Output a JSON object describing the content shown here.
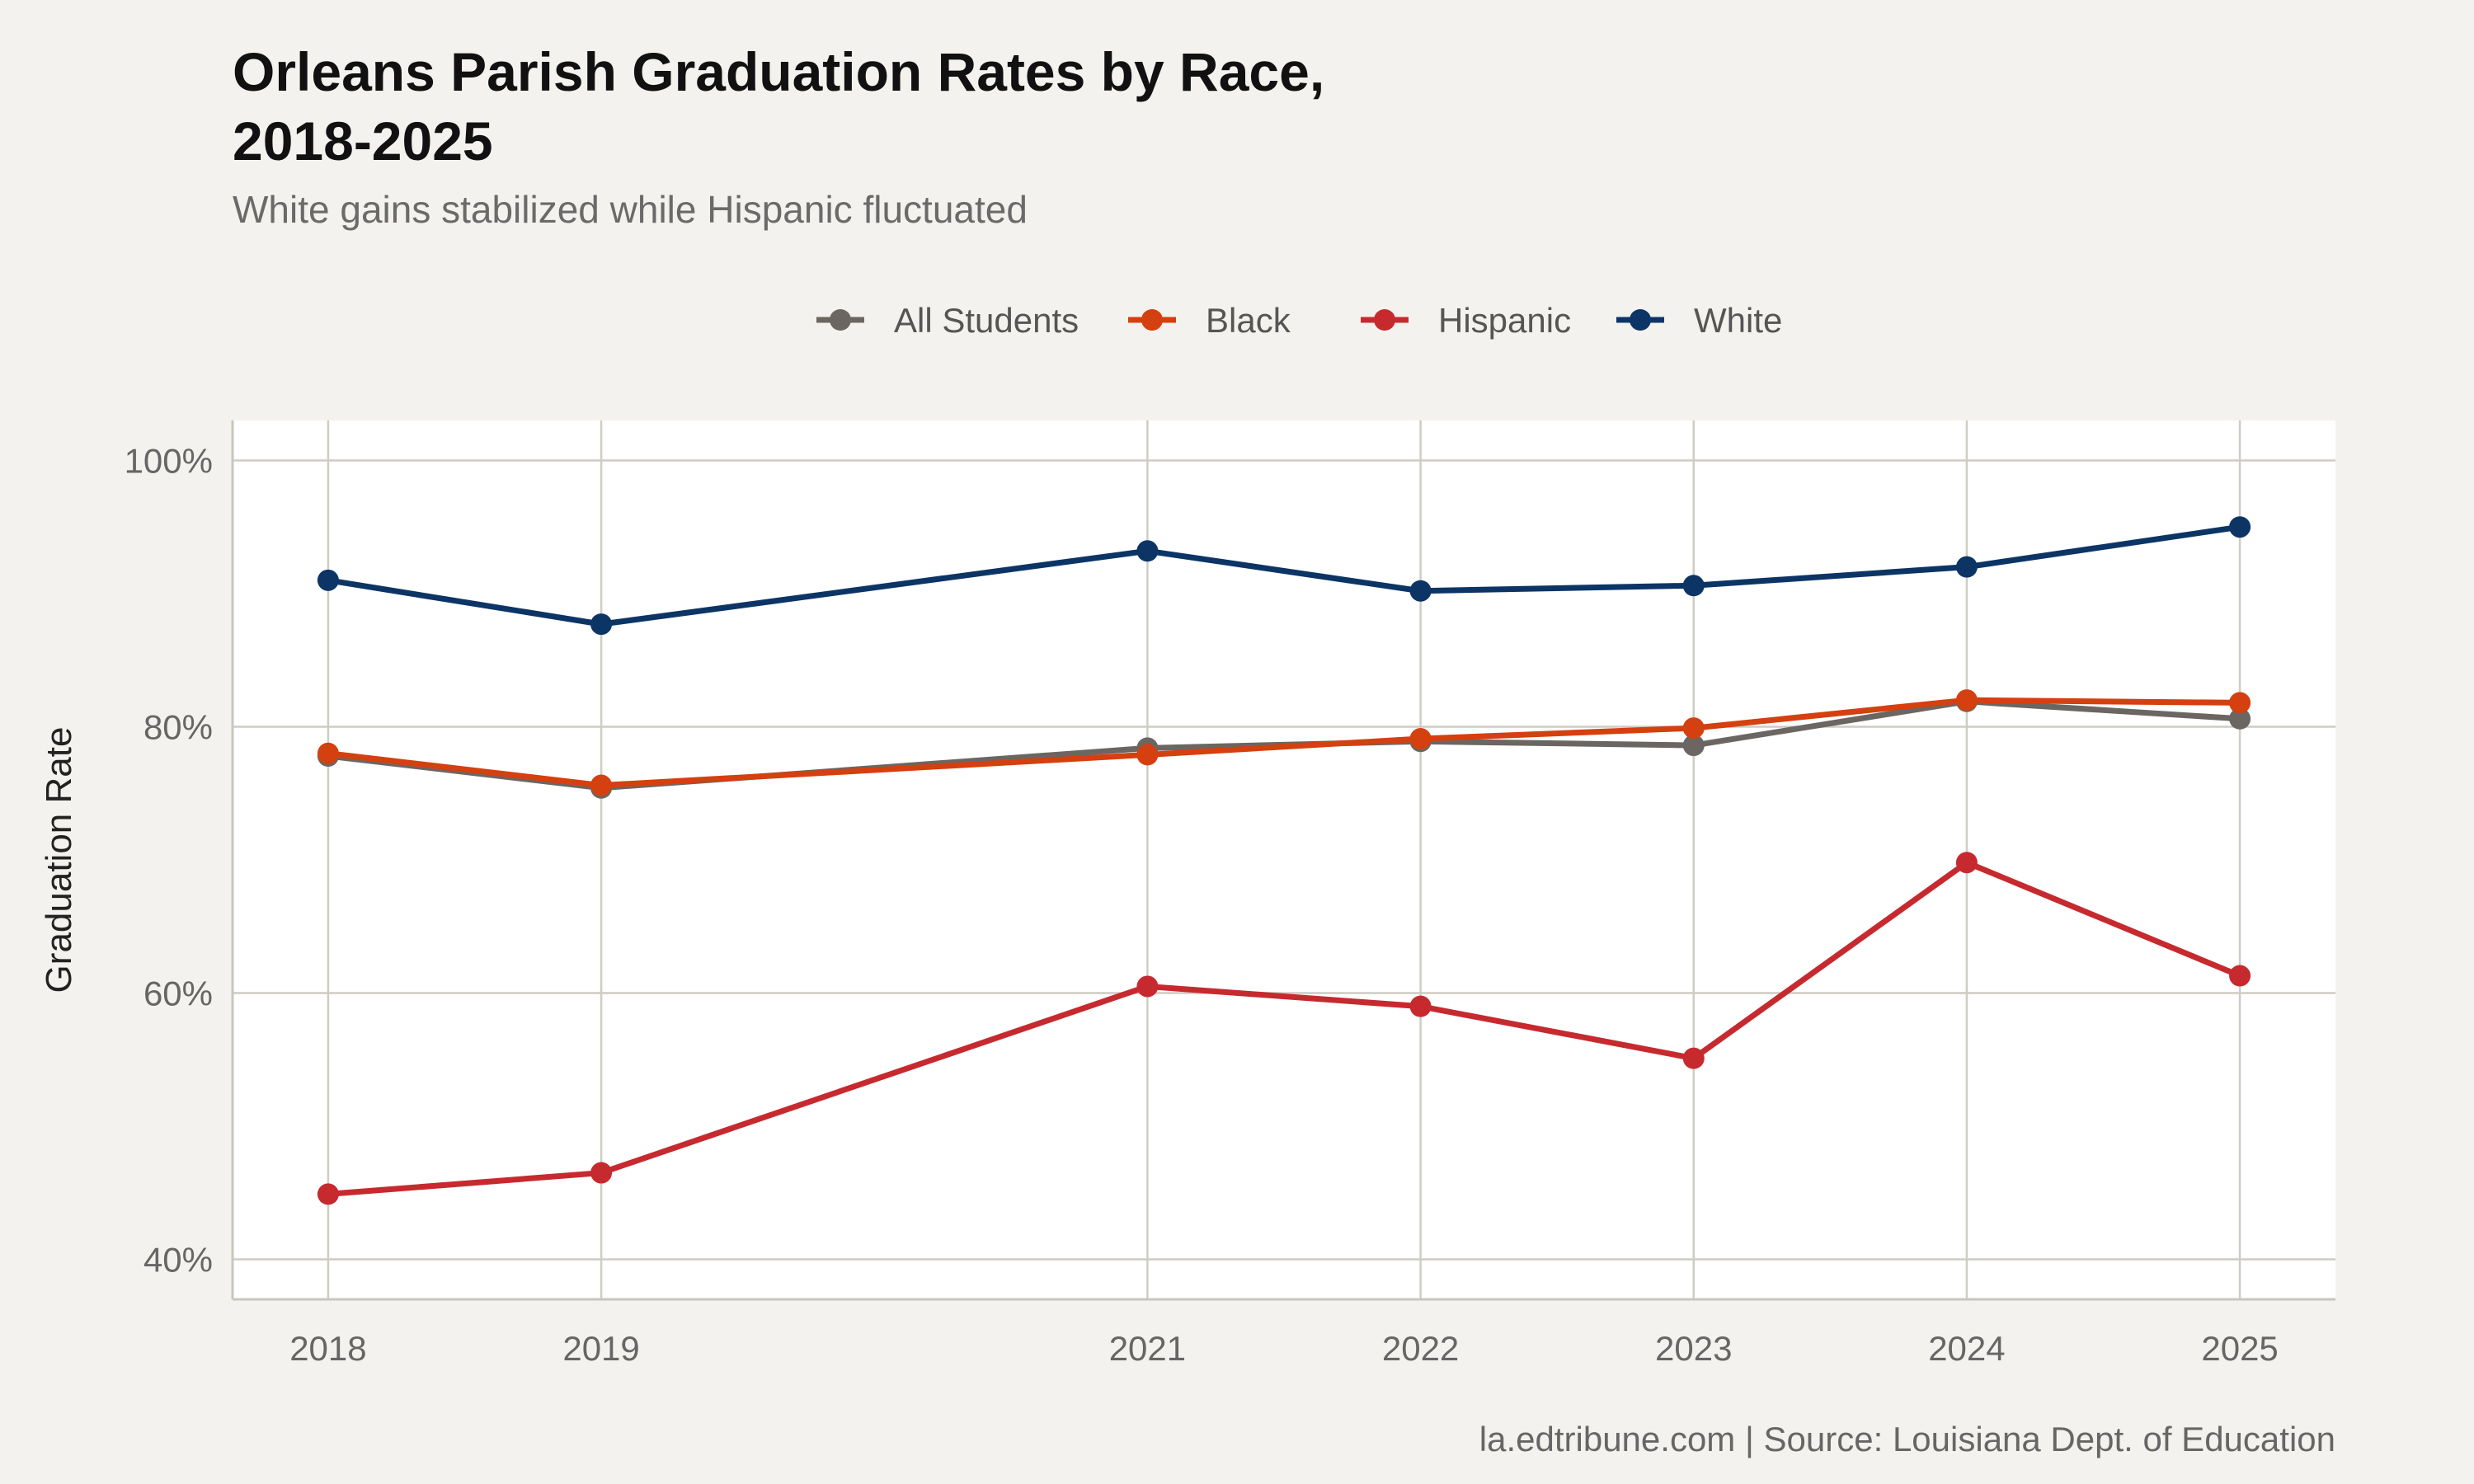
{
  "chart_data": {
    "type": "line",
    "title_lines": [
      "Orleans Parish Graduation Rates by Race,",
      "2018-2025"
    ],
    "subtitle": "White gains stabilized while Hispanic fluctuated",
    "ylabel": "Graduation Rate",
    "xlabel": "",
    "caption": "la.edtribune.com | Source: Louisiana Dept. of Education",
    "x": [
      2018,
      2019,
      2021,
      2022,
      2023,
      2024,
      2025
    ],
    "xlim": [
      2017.65,
      2025.35
    ],
    "ylim": [
      37,
      103
    ],
    "yticks": [
      40,
      60,
      80,
      100
    ],
    "ytick_labels": [
      "40%",
      "60%",
      "80%",
      "100%"
    ],
    "grid": true,
    "legend_position": "top",
    "series": [
      {
        "name": "All Students",
        "color": "#6b6661",
        "values": [
          77.8,
          75.4,
          78.4,
          78.9,
          78.6,
          81.9,
          80.6
        ]
      },
      {
        "name": "Black",
        "color": "#d4400f",
        "values": [
          78.0,
          75.6,
          77.9,
          79.1,
          79.9,
          82.0,
          81.8
        ]
      },
      {
        "name": "Hispanic",
        "color": "#c62a2f",
        "values": [
          44.9,
          46.5,
          60.5,
          59.0,
          55.1,
          69.8,
          61.3
        ]
      },
      {
        "name": "White",
        "color": "#0c3566",
        "values": [
          91.0,
          87.7,
          93.2,
          90.2,
          90.6,
          92.0,
          95.0
        ]
      }
    ]
  }
}
